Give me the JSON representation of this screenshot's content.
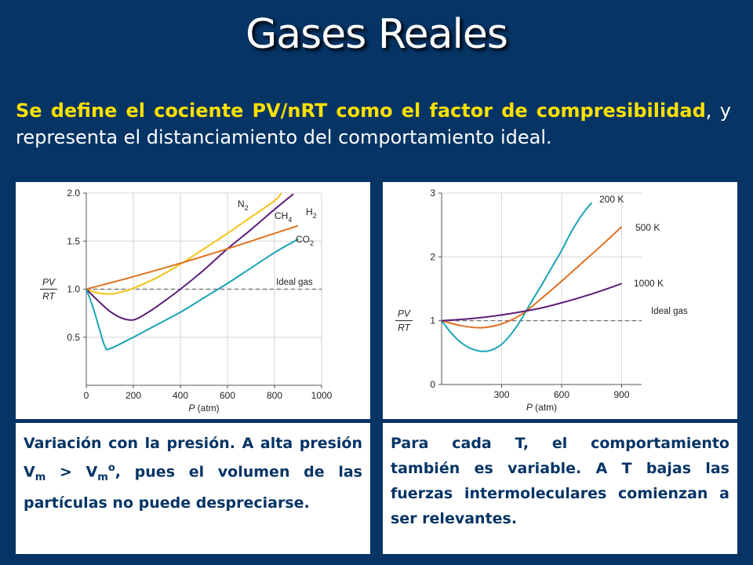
{
  "slide": {
    "title": "Gases Reales",
    "intro": {
      "hl1": "Se define el cociente PV/nRT como el factor de compresibilidad",
      "rest": ", y representa el distanciamiento del comportamiento ideal."
    },
    "colors": {
      "background": "#053465",
      "highlight": "#ffe000",
      "caption_text": "#053465"
    }
  },
  "captions": {
    "left": {
      "p1": "Variación con la presión. A alta presión V",
      "sub1": "m",
      "p2": " > V",
      "sub2": "m",
      "sup2": "o",
      "p3": ", pues el volumen de las partículas no puede despreciarse."
    },
    "right": {
      "text": "Para cada T, el comportamiento también es variable. A T bajas las fuerzas intermoleculares comienzan a ser relevantes."
    }
  },
  "chart_data": [
    {
      "type": "line",
      "xlabel": "P (atm)",
      "ylabel": "PV/RT",
      "xlim": [
        0,
        1000
      ],
      "ylim": [
        0,
        2.0
      ],
      "xticks": [
        "0",
        "200",
        "400",
        "600",
        "800",
        "1000"
      ],
      "yticks": [
        "0.5",
        "1.0",
        "1.5",
        "2.0"
      ],
      "grid": true,
      "ideal_label": "Ideal gas",
      "series": [
        {
          "name": "N2",
          "label_main": "N",
          "label_sub": "2",
          "color": "#f2c316",
          "x": [
            0,
            50,
            100,
            150,
            200,
            300,
            400,
            500,
            600,
            700,
            800,
            830
          ],
          "y": [
            1.0,
            0.96,
            0.95,
            0.97,
            1.01,
            1.12,
            1.26,
            1.42,
            1.58,
            1.75,
            1.92,
            2.0
          ]
        },
        {
          "name": "CH4",
          "label_main": "CH",
          "label_sub": "4",
          "color": "#5c1d7a",
          "x": [
            0,
            50,
            100,
            150,
            200,
            250,
            300,
            400,
            500,
            600,
            700,
            800,
            880
          ],
          "y": [
            1.0,
            0.88,
            0.77,
            0.7,
            0.68,
            0.74,
            0.82,
            1.0,
            1.2,
            1.42,
            1.62,
            1.83,
            1.99
          ]
        },
        {
          "name": "H2",
          "label_main": "H",
          "label_sub": "2",
          "color": "#e07120",
          "x": [
            0,
            200,
            400,
            600,
            800,
            900
          ],
          "y": [
            1.0,
            1.13,
            1.27,
            1.42,
            1.58,
            1.66
          ]
        },
        {
          "name": "CO2",
          "label_main": "CO",
          "label_sub": "2",
          "color": "#1aa3b5",
          "x": [
            0,
            30,
            60,
            80,
            100,
            200,
            300,
            400,
            500,
            600,
            700,
            800,
            900
          ],
          "y": [
            1.0,
            0.8,
            0.55,
            0.4,
            0.38,
            0.5,
            0.63,
            0.76,
            0.91,
            1.06,
            1.22,
            1.38,
            1.52
          ]
        }
      ]
    },
    {
      "type": "line",
      "xlabel": "P (atm)",
      "ylabel": "PV/RT",
      "xlim": [
        0,
        1000
      ],
      "ylim": [
        0,
        3
      ],
      "xticks": [
        "300",
        "600",
        "900"
      ],
      "yticks": [
        "0",
        "1",
        "2",
        "3"
      ],
      "grid": true,
      "ideal_label": "Ideal gas",
      "series": [
        {
          "name": "200 K",
          "color": "#1aa3b5",
          "x": [
            0,
            50,
            100,
            150,
            200,
            250,
            300,
            350,
            400,
            450,
            500,
            550,
            600,
            650,
            700,
            750
          ],
          "y": [
            1.0,
            0.8,
            0.65,
            0.56,
            0.52,
            0.54,
            0.63,
            0.8,
            1.03,
            1.3,
            1.56,
            1.83,
            2.1,
            2.4,
            2.65,
            2.85
          ]
        },
        {
          "name": "500 K",
          "color": "#e07120",
          "x": [
            0,
            100,
            200,
            300,
            400,
            500,
            600,
            700,
            800,
            900
          ],
          "y": [
            1.0,
            0.92,
            0.89,
            0.95,
            1.1,
            1.35,
            1.62,
            1.9,
            2.18,
            2.47
          ]
        },
        {
          "name": "1000 K",
          "color": "#5c1d7a",
          "x": [
            0,
            100,
            200,
            300,
            400,
            500,
            600,
            700,
            800,
            900
          ],
          "y": [
            1.0,
            1.02,
            1.05,
            1.09,
            1.14,
            1.2,
            1.28,
            1.37,
            1.47,
            1.58
          ]
        }
      ]
    }
  ]
}
